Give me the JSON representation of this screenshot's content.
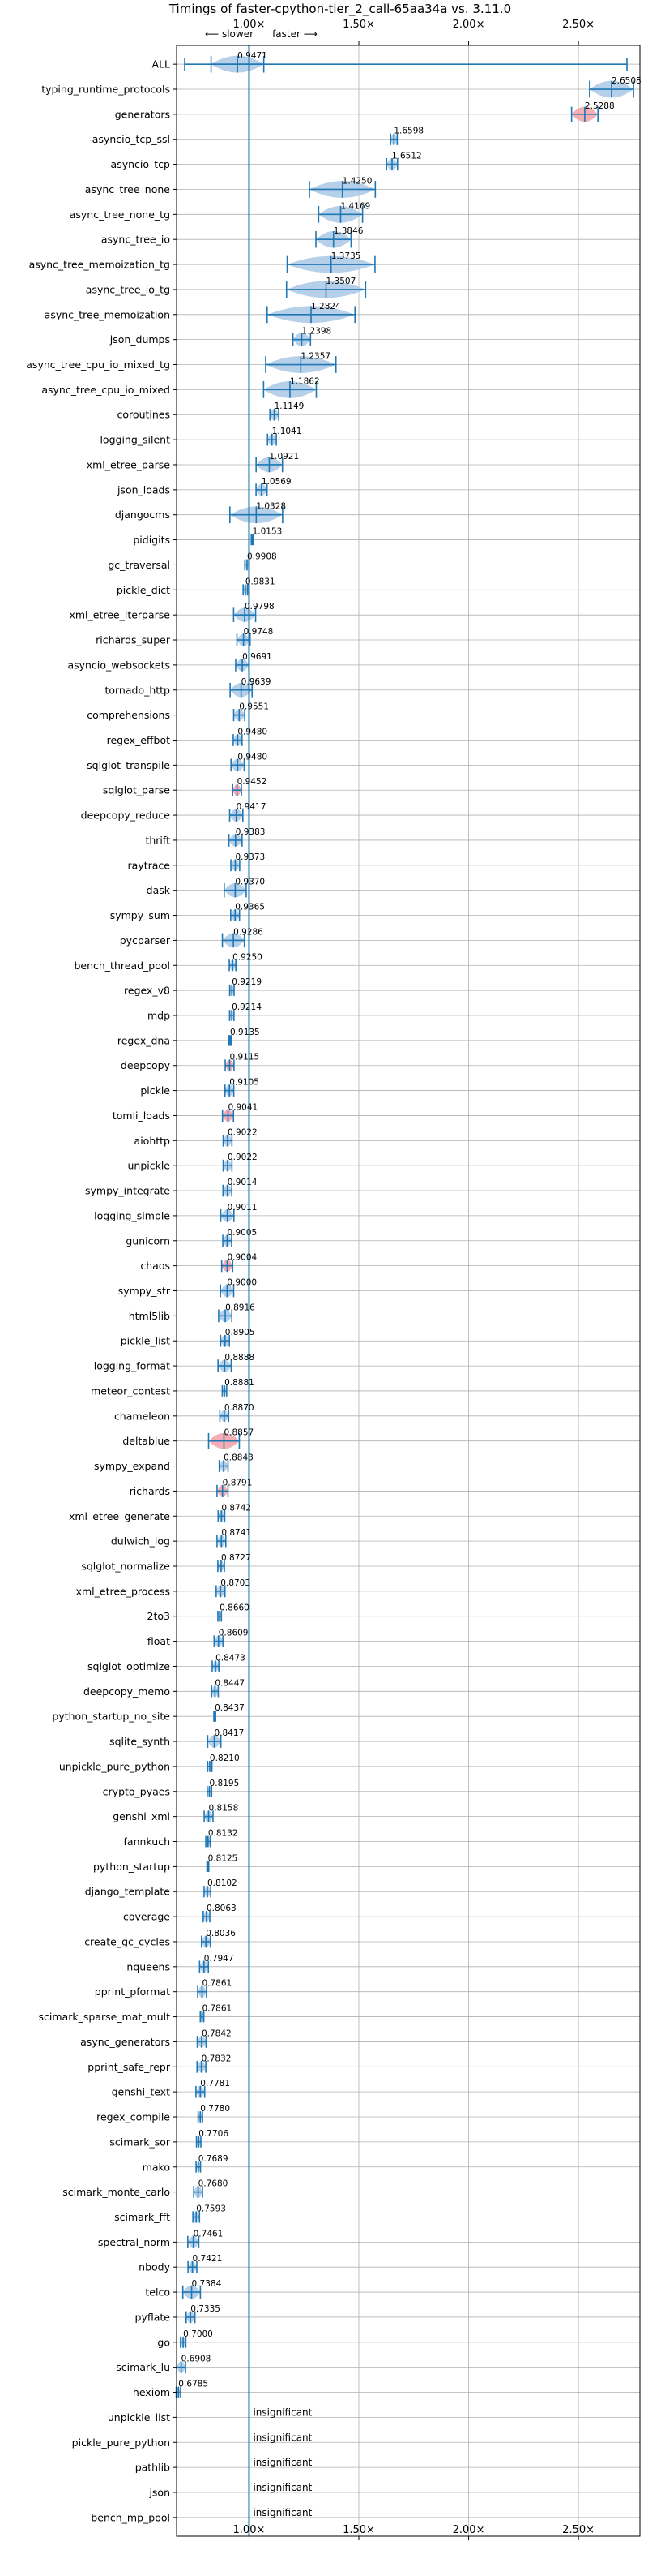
{
  "chart_data": {
    "type": "violin",
    "title": "Timings of faster-cpython-tier_2_call-65aa34a vs. 3.11.0",
    "slower_label": "⟵ slower",
    "faster_label": "faster ⟶",
    "xlim": [
      0.67,
      2.78
    ],
    "x_ticks": [
      1.0,
      1.5,
      2.0,
      2.5
    ],
    "x_tick_labels": [
      "1.00×",
      "1.50×",
      "2.00×",
      "2.50×"
    ],
    "reference_line": 1.0,
    "grid": true,
    "colors": {
      "violin": "#a9c8e6",
      "violin_slow": "#f4a0a8",
      "accent": "#1f77b4",
      "grid": "#b0b0b0"
    },
    "benchmarks": [
      {
        "name": "ALL",
        "value": 0.9471,
        "label": "0.9471",
        "spread": 0.12,
        "slow": false
      },
      {
        "name": "typing_runtime_protocols",
        "value": 2.6508,
        "label": "2.6508",
        "spread": 0.1,
        "slow": false
      },
      {
        "name": "generators",
        "value": 2.5288,
        "label": "2.5288",
        "spread": 0.06,
        "slow": true
      },
      {
        "name": "asyncio_tcp_ssl",
        "value": 1.6598,
        "label": "1.6598",
        "spread": 0.015,
        "slow": false
      },
      {
        "name": "asyncio_tcp",
        "value": 1.6512,
        "label": "1.6512",
        "spread": 0.025,
        "slow": false
      },
      {
        "name": "async_tree_none",
        "value": 1.425,
        "label": "1.4250",
        "spread": 0.15,
        "slow": false
      },
      {
        "name": "async_tree_none_tg",
        "value": 1.4169,
        "label": "1.4169",
        "spread": 0.1,
        "slow": false
      },
      {
        "name": "async_tree_io",
        "value": 1.3846,
        "label": "1.3846",
        "spread": 0.08,
        "slow": false
      },
      {
        "name": "async_tree_memoization_tg",
        "value": 1.3735,
        "label": "1.3735",
        "spread": 0.2,
        "slow": false
      },
      {
        "name": "async_tree_io_tg",
        "value": 1.3507,
        "label": "1.3507",
        "spread": 0.18,
        "slow": false
      },
      {
        "name": "async_tree_memoization",
        "value": 1.2824,
        "label": "1.2824",
        "spread": 0.2,
        "slow": false
      },
      {
        "name": "json_dumps",
        "value": 1.2398,
        "label": "1.2398",
        "spread": 0.04,
        "slow": false
      },
      {
        "name": "async_tree_cpu_io_mixed_tg",
        "value": 1.2357,
        "label": "1.2357",
        "spread": 0.16,
        "slow": false
      },
      {
        "name": "async_tree_cpu_io_mixed",
        "value": 1.1862,
        "label": "1.1862",
        "spread": 0.12,
        "slow": false
      },
      {
        "name": "coroutines",
        "value": 1.1149,
        "label": "1.1149",
        "spread": 0.02,
        "slow": false
      },
      {
        "name": "logging_silent",
        "value": 1.1041,
        "label": "1.1041",
        "spread": 0.02,
        "slow": false
      },
      {
        "name": "xml_etree_parse",
        "value": 1.0921,
        "label": "1.0921",
        "spread": 0.06,
        "slow": false
      },
      {
        "name": "json_loads",
        "value": 1.0569,
        "label": "1.0569",
        "spread": 0.025,
        "slow": false
      },
      {
        "name": "djangocms",
        "value": 1.0328,
        "label": "1.0328",
        "spread": 0.12,
        "slow": false
      },
      {
        "name": "pidigits",
        "value": 1.0153,
        "label": "1.0153",
        "spread": 0.005,
        "slow": false
      },
      {
        "name": "gc_traversal",
        "value": 0.9908,
        "label": "0.9908",
        "spread": 0.01,
        "slow": false
      },
      {
        "name": "pickle_dict",
        "value": 0.9831,
        "label": "0.9831",
        "spread": 0.01,
        "slow": false
      },
      {
        "name": "xml_etree_iterparse",
        "value": 0.9798,
        "label": "0.9798",
        "spread": 0.05,
        "slow": false
      },
      {
        "name": "richards_super",
        "value": 0.9748,
        "label": "0.9748",
        "spread": 0.03,
        "slow": false
      },
      {
        "name": "asyncio_websockets",
        "value": 0.9691,
        "label": "0.9691",
        "spread": 0.03,
        "slow": false
      },
      {
        "name": "tornado_http",
        "value": 0.9639,
        "label": "0.9639",
        "spread": 0.05,
        "slow": false
      },
      {
        "name": "comprehensions",
        "value": 0.9551,
        "label": "0.9551",
        "spread": 0.025,
        "slow": false
      },
      {
        "name": "regex_effbot",
        "value": 0.948,
        "label": "0.9480",
        "spread": 0.02,
        "slow": false
      },
      {
        "name": "sqlglot_transpile",
        "value": 0.948,
        "label": "0.9480",
        "spread": 0.03,
        "slow": false
      },
      {
        "name": "sqlglot_parse",
        "value": 0.9452,
        "label": "0.9452",
        "spread": 0.02,
        "slow": true
      },
      {
        "name": "deepcopy_reduce",
        "value": 0.9417,
        "label": "0.9417",
        "spread": 0.03,
        "slow": false
      },
      {
        "name": "thrift",
        "value": 0.9383,
        "label": "0.9383",
        "spread": 0.03,
        "slow": false
      },
      {
        "name": "raytrace",
        "value": 0.9373,
        "label": "0.9373",
        "spread": 0.02,
        "slow": false
      },
      {
        "name": "dask",
        "value": 0.937,
        "label": "0.9370",
        "spread": 0.05,
        "slow": false
      },
      {
        "name": "sympy_sum",
        "value": 0.9365,
        "label": "0.9365",
        "spread": 0.02,
        "slow": false
      },
      {
        "name": "pycparser",
        "value": 0.9286,
        "label": "0.9286",
        "spread": 0.05,
        "slow": false
      },
      {
        "name": "bench_thread_pool",
        "value": 0.925,
        "label": "0.9250",
        "spread": 0.015,
        "slow": false
      },
      {
        "name": "regex_v8",
        "value": 0.9219,
        "label": "0.9219",
        "spread": 0.01,
        "slow": false
      },
      {
        "name": "mdp",
        "value": 0.9214,
        "label": "0.9214",
        "spread": 0.01,
        "slow": false
      },
      {
        "name": "regex_dna",
        "value": 0.9135,
        "label": "0.9135",
        "spread": 0.005,
        "slow": false
      },
      {
        "name": "deepcopy",
        "value": 0.9115,
        "label": "0.9115",
        "spread": 0.02,
        "slow": true
      },
      {
        "name": "pickle",
        "value": 0.9105,
        "label": "0.9105",
        "spread": 0.02,
        "slow": false
      },
      {
        "name": "tomli_loads",
        "value": 0.9041,
        "label": "0.9041",
        "spread": 0.025,
        "slow": true
      },
      {
        "name": "aiohttp",
        "value": 0.9022,
        "label": "0.9022",
        "spread": 0.02,
        "slow": false
      },
      {
        "name": "unpickle",
        "value": 0.9022,
        "label": "0.9022",
        "spread": 0.02,
        "slow": false
      },
      {
        "name": "sympy_integrate",
        "value": 0.9014,
        "label": "0.9014",
        "spread": 0.02,
        "slow": false
      },
      {
        "name": "logging_simple",
        "value": 0.9011,
        "label": "0.9011",
        "spread": 0.03,
        "slow": false
      },
      {
        "name": "gunicorn",
        "value": 0.9005,
        "label": "0.9005",
        "spread": 0.02,
        "slow": false
      },
      {
        "name": "chaos",
        "value": 0.9004,
        "label": "0.9004",
        "spread": 0.025,
        "slow": true
      },
      {
        "name": "sympy_str",
        "value": 0.9,
        "label": "0.9000",
        "spread": 0.03,
        "slow": false
      },
      {
        "name": "html5lib",
        "value": 0.8916,
        "label": "0.8916",
        "spread": 0.03,
        "slow": false
      },
      {
        "name": "pickle_list",
        "value": 0.8905,
        "label": "0.8905",
        "spread": 0.02,
        "slow": false
      },
      {
        "name": "logging_format",
        "value": 0.8888,
        "label": "0.8888",
        "spread": 0.03,
        "slow": false
      },
      {
        "name": "meteor_contest",
        "value": 0.8881,
        "label": "0.8881",
        "spread": 0.01,
        "slow": false
      },
      {
        "name": "chameleon",
        "value": 0.887,
        "label": "0.8870",
        "spread": 0.02,
        "slow": false
      },
      {
        "name": "deltablue",
        "value": 0.8857,
        "label": "0.8857",
        "spread": 0.07,
        "slow": true
      },
      {
        "name": "sympy_expand",
        "value": 0.8843,
        "label": "0.8843",
        "spread": 0.02,
        "slow": false
      },
      {
        "name": "richards",
        "value": 0.8791,
        "label": "0.8791",
        "spread": 0.025,
        "slow": true
      },
      {
        "name": "xml_etree_generate",
        "value": 0.8742,
        "label": "0.8742",
        "spread": 0.015,
        "slow": false
      },
      {
        "name": "dulwich_log",
        "value": 0.8741,
        "label": "0.8741",
        "spread": 0.02,
        "slow": false
      },
      {
        "name": "sqlglot_normalize",
        "value": 0.8727,
        "label": "0.8727",
        "spread": 0.015,
        "slow": false
      },
      {
        "name": "xml_etree_process",
        "value": 0.8703,
        "label": "0.8703",
        "spread": 0.02,
        "slow": false
      },
      {
        "name": "2to3",
        "value": 0.866,
        "label": "0.8660",
        "spread": 0.008,
        "slow": false
      },
      {
        "name": "float",
        "value": 0.8609,
        "label": "0.8609",
        "spread": 0.02,
        "slow": false
      },
      {
        "name": "sqlglot_optimize",
        "value": 0.8473,
        "label": "0.8473",
        "spread": 0.015,
        "slow": false
      },
      {
        "name": "deepcopy_memo",
        "value": 0.8447,
        "label": "0.8447",
        "spread": 0.015,
        "slow": false
      },
      {
        "name": "python_startup_no_site",
        "value": 0.8437,
        "label": "0.8437",
        "spread": 0.004,
        "slow": false
      },
      {
        "name": "sqlite_synth",
        "value": 0.8417,
        "label": "0.8417",
        "spread": 0.03,
        "slow": false
      },
      {
        "name": "unpickle_pure_python",
        "value": 0.821,
        "label": "0.8210",
        "spread": 0.01,
        "slow": false
      },
      {
        "name": "crypto_pyaes",
        "value": 0.8195,
        "label": "0.8195",
        "spread": 0.01,
        "slow": false
      },
      {
        "name": "genshi_xml",
        "value": 0.8158,
        "label": "0.8158",
        "spread": 0.02,
        "slow": false
      },
      {
        "name": "fannkuch",
        "value": 0.8132,
        "label": "0.8132",
        "spread": 0.01,
        "slow": false
      },
      {
        "name": "python_startup",
        "value": 0.8125,
        "label": "0.8125",
        "spread": 0.004,
        "slow": false
      },
      {
        "name": "django_template",
        "value": 0.8102,
        "label": "0.8102",
        "spread": 0.015,
        "slow": false
      },
      {
        "name": "coverage",
        "value": 0.8063,
        "label": "0.8063",
        "spread": 0.015,
        "slow": false
      },
      {
        "name": "create_gc_cycles",
        "value": 0.8036,
        "label": "0.8036",
        "spread": 0.02,
        "slow": false
      },
      {
        "name": "nqueens",
        "value": 0.7947,
        "label": "0.7947",
        "spread": 0.02,
        "slow": false
      },
      {
        "name": "pprint_pformat",
        "value": 0.7861,
        "label": "0.7861",
        "spread": 0.02,
        "slow": false
      },
      {
        "name": "scimark_sparse_mat_mult",
        "value": 0.7861,
        "label": "0.7861",
        "spread": 0.008,
        "slow": false
      },
      {
        "name": "async_generators",
        "value": 0.7842,
        "label": "0.7842",
        "spread": 0.02,
        "slow": false
      },
      {
        "name": "pprint_safe_repr",
        "value": 0.7832,
        "label": "0.7832",
        "spread": 0.02,
        "slow": false
      },
      {
        "name": "genshi_text",
        "value": 0.7781,
        "label": "0.7781",
        "spread": 0.02,
        "slow": false
      },
      {
        "name": "regex_compile",
        "value": 0.778,
        "label": "0.7780",
        "spread": 0.01,
        "slow": false
      },
      {
        "name": "scimark_sor",
        "value": 0.7706,
        "label": "0.7706",
        "spread": 0.01,
        "slow": false
      },
      {
        "name": "mako",
        "value": 0.7689,
        "label": "0.7689",
        "spread": 0.01,
        "slow": false
      },
      {
        "name": "scimark_monte_carlo",
        "value": 0.768,
        "label": "0.7680",
        "spread": 0.02,
        "slow": false
      },
      {
        "name": "scimark_fft",
        "value": 0.7593,
        "label": "0.7593",
        "spread": 0.015,
        "slow": false
      },
      {
        "name": "spectral_norm",
        "value": 0.7461,
        "label": "0.7461",
        "spread": 0.025,
        "slow": false
      },
      {
        "name": "nbody",
        "value": 0.7421,
        "label": "0.7421",
        "spread": 0.02,
        "slow": false
      },
      {
        "name": "telco",
        "value": 0.7384,
        "label": "0.7384",
        "spread": 0.04,
        "slow": false
      },
      {
        "name": "pyflate",
        "value": 0.7335,
        "label": "0.7335",
        "spread": 0.02,
        "slow": false
      },
      {
        "name": "go",
        "value": 0.7,
        "label": "0.7000",
        "spread": 0.012,
        "slow": false
      },
      {
        "name": "scimark_lu",
        "value": 0.6908,
        "label": "0.6908",
        "spread": 0.02,
        "slow": false
      },
      {
        "name": "hexiom",
        "value": 0.6785,
        "label": "0.6785",
        "spread": 0.01,
        "slow": false
      },
      {
        "name": "unpickle_list",
        "value": null,
        "label": "insignificant",
        "spread": 0,
        "slow": false
      },
      {
        "name": "pickle_pure_python",
        "value": null,
        "label": "insignificant",
        "spread": 0,
        "slow": false
      },
      {
        "name": "pathlib",
        "value": null,
        "label": "insignificant",
        "spread": 0,
        "slow": false
      },
      {
        "name": "json",
        "value": null,
        "label": "insignificant",
        "spread": 0,
        "slow": false
      },
      {
        "name": "bench_mp_pool",
        "value": null,
        "label": "insignificant",
        "spread": 0,
        "slow": false
      }
    ]
  }
}
